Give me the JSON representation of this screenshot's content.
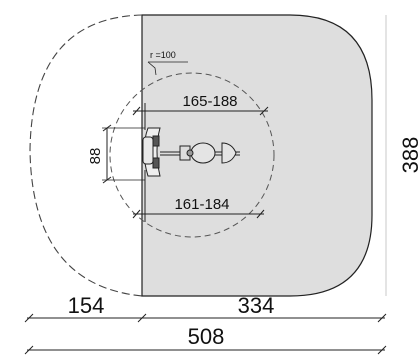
{
  "radius_note": "r =100",
  "dimensions": {
    "top_inner": "165-188",
    "bottom_inner": "161-184",
    "left_vertical": "88",
    "right_vertical": "388",
    "bottom_left": "154",
    "bottom_right": "334",
    "total_width": "508"
  },
  "colors": {
    "zone_fill": "#dedede",
    "line": "#222222",
    "dashed": "#444444"
  }
}
